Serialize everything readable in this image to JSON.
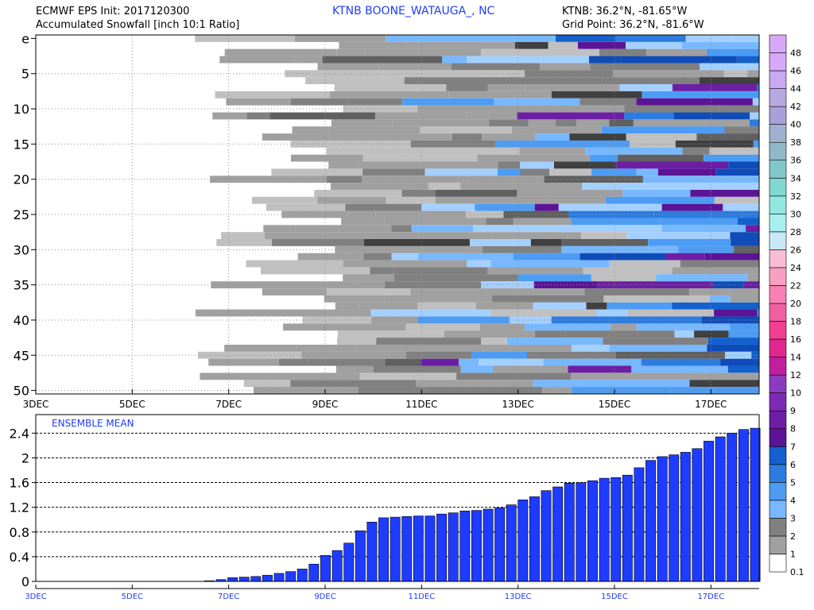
{
  "header": {
    "left_line1": "ECMWF EPS Init: 2017120300",
    "left_line2": "Accumulated Snowfall [inch 10:1 Ratio]",
    "center": "KTNB BOONE_WATAUGA_, NC",
    "right_line1": "KTNB: 36.2°N, -81.65°W",
    "right_line2": "Grid Point: 36.2°N, -81.6°W"
  },
  "colors": {
    "palette": [
      "#ffffff",
      "#c0c0c0",
      "#a0a0a0",
      "#808080",
      "#606060",
      "#404040",
      "#a4d0ff",
      "#78b8ff",
      "#4c9cf4",
      "#2c7ce0",
      "#1460cc",
      "#104cb8",
      "#5c1496",
      "#6c1ea4",
      "#7c2cb4",
      "#8c3cc0",
      "#a050cc",
      "#c020a0",
      "#e02890",
      "#f04090",
      "#f060a0",
      "#f880b4",
      "#f8a0c4",
      "#f8bcd4",
      "#e0c8e0",
      "#c8e8f8",
      "#a8f0f0",
      "#90e8e0",
      "#80d8d0",
      "#80c8c8",
      "#90b8c8",
      "#a0b0d0",
      "#a8a0d8",
      "#b8a8e0",
      "#c8a8f0",
      "#d8a8f8"
    ],
    "mean_bar": "#1e3cff"
  },
  "chart_data": [
    {
      "type": "heatmap",
      "title": "Accumulated Snowfall [inch 10:1 Ratio]",
      "x_start": "3DEC",
      "x_end": "18DEC",
      "xtick_labels": [
        "3DEC",
        "5DEC",
        "7DEC",
        "9DEC",
        "11DEC",
        "13DEC",
        "15DEC",
        "17DEC"
      ],
      "ytick_labels": [
        "e",
        "5",
        "10",
        "15",
        "20",
        "25",
        "30",
        "35",
        "40",
        "45",
        "50"
      ],
      "members": [
        "e",
        "1",
        "2",
        "3",
        "4",
        "5",
        "6",
        "7",
        "8",
        "9",
        "10",
        "11",
        "12",
        "13",
        "14",
        "15",
        "16",
        "17",
        "18",
        "19",
        "20",
        "21",
        "22",
        "23",
        "24",
        "25",
        "26",
        "27",
        "28",
        "29",
        "30",
        "31",
        "32",
        "33",
        "34",
        "35",
        "36",
        "37",
        "38",
        "39",
        "40",
        "41",
        "42",
        "43",
        "44",
        "45",
        "46",
        "47",
        "48",
        "49",
        "50"
      ],
      "grid": true,
      "legend_position": "right",
      "color_scale": {
        "labels": [
          "0.1",
          "1",
          "2",
          "3",
          "4",
          "5",
          "6",
          "7",
          "8",
          "9",
          "10",
          "12",
          "14",
          "16",
          "18",
          "20",
          "22",
          "24",
          "26",
          "28",
          "30",
          "32",
          "34",
          "36",
          "38",
          "40",
          "42",
          "44",
          "46",
          "48"
        ],
        "colors": [
          "#ffffff",
          "#a0a0a0",
          "#808080",
          "#78b8ff",
          "#4c9cf4",
          "#2c7ce0",
          "#1460cc",
          "#5c1496",
          "#6c1ea4",
          "#7c2cb4",
          "#8c3cc0",
          "#c020a0",
          "#e02890",
          "#f04090",
          "#f060a0",
          "#f880b4",
          "#f8a0c4",
          "#f8bcd4",
          "#c8e8f8",
          "#a8f0f0",
          "#90e8e0",
          "#80d8d0",
          "#80c8c8",
          "#90b8c8",
          "#a0b0d0",
          "#a8a0d8",
          "#b8a8e0",
          "#c8a8f0",
          "#d8a8f8",
          "#d8a8f8"
        ]
      }
    },
    {
      "type": "bar",
      "title": "ENSEMBLE MEAN",
      "x_start": "3DEC",
      "x_end": "18DEC",
      "xtick_labels": [
        "3DEC",
        "5DEC",
        "7DEC",
        "9DEC",
        "11DEC",
        "13DEC",
        "15DEC",
        "17DEC"
      ],
      "ytick_labels": [
        "0",
        "0.4",
        "0.8",
        "1.2",
        "1.6",
        "2",
        "2.4"
      ],
      "ylim": [
        0,
        2.7
      ],
      "grid": true,
      "values": [
        0.01,
        0.03,
        0.06,
        0.07,
        0.08,
        0.1,
        0.13,
        0.16,
        0.2,
        0.28,
        0.42,
        0.5,
        0.62,
        0.82,
        0.96,
        1.03,
        1.04,
        1.05,
        1.06,
        1.06,
        1.09,
        1.11,
        1.14,
        1.15,
        1.17,
        1.19,
        1.24,
        1.32,
        1.37,
        1.47,
        1.53,
        1.59,
        1.6,
        1.63,
        1.67,
        1.68,
        1.72,
        1.84,
        1.96,
        2.02,
        2.05,
        2.09,
        2.15,
        2.27,
        2.34,
        2.4,
        2.46,
        2.48
      ]
    }
  ]
}
